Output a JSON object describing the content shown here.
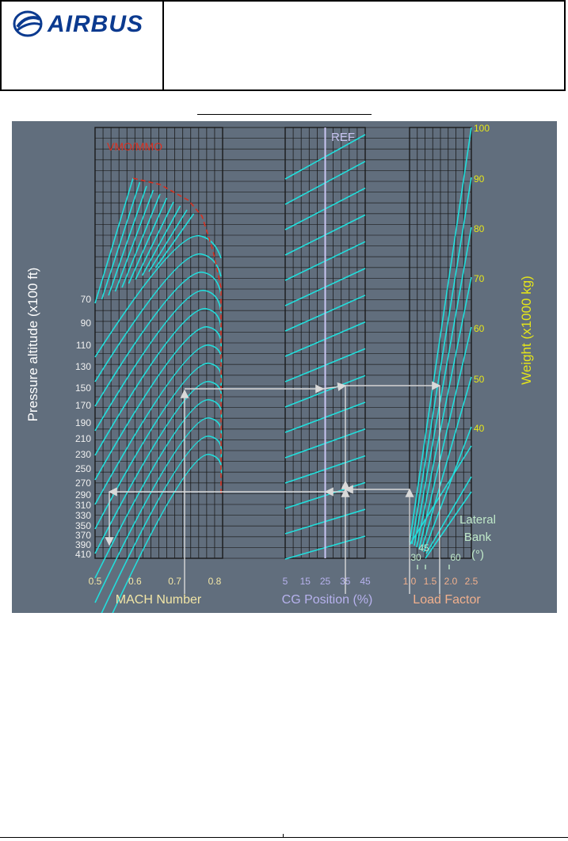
{
  "header": {
    "logo_text": "AIRBUS",
    "title": ""
  },
  "colors": {
    "background": "#616e7d",
    "curves": "#21dedc",
    "vmo": "#d83020",
    "mach_labels": "#f2e6a6",
    "cg_labels": "#b7b2ee",
    "load_labels": "#f1b08d",
    "weight_labels": "#e6e619",
    "bank_labels": "#bfe8c8",
    "grid": "#1a1a1a",
    "arrows": "#d9d9d9",
    "ref_line": "#c9c5f2"
  },
  "chart_data": {
    "type": "line",
    "title": "",
    "panels": {
      "mach": {
        "xlabel": "MACH Number",
        "ylabel": "Pressure altitude (x100 ft)",
        "xlim": [
          0.5,
          0.82
        ],
        "x_ticks": [
          "0.5",
          "0.6",
          "0.7",
          "0.8"
        ],
        "altitude_labels": [
          "70",
          "90",
          "110",
          "130",
          "150",
          "170",
          "190",
          "210",
          "230",
          "250",
          "270",
          "290",
          "310",
          "330",
          "350",
          "370",
          "390",
          "410"
        ],
        "vmo_label": "VMO/MMO"
      },
      "cg": {
        "xlabel": "CG Position (%)",
        "x_ticks": [
          "5",
          "15",
          "25",
          "35",
          "45"
        ],
        "xlim": [
          5,
          45
        ],
        "ref_label": "REF",
        "ref_value": 25
      },
      "load": {
        "xlabel": "Load Factor",
        "x_ticks": [
          "1.0",
          "1.5",
          "2.0",
          "2.5"
        ],
        "xlim": [
          1.0,
          2.5
        ],
        "bank_title": "Lateral\nBank\n(°)",
        "bank_labels": [
          "30",
          "45",
          "60"
        ],
        "weight_label": "Weight (x1000 kg)",
        "weight_ticks": [
          "100",
          "90",
          "80",
          "70",
          "60",
          "50",
          "40"
        ]
      }
    }
  }
}
